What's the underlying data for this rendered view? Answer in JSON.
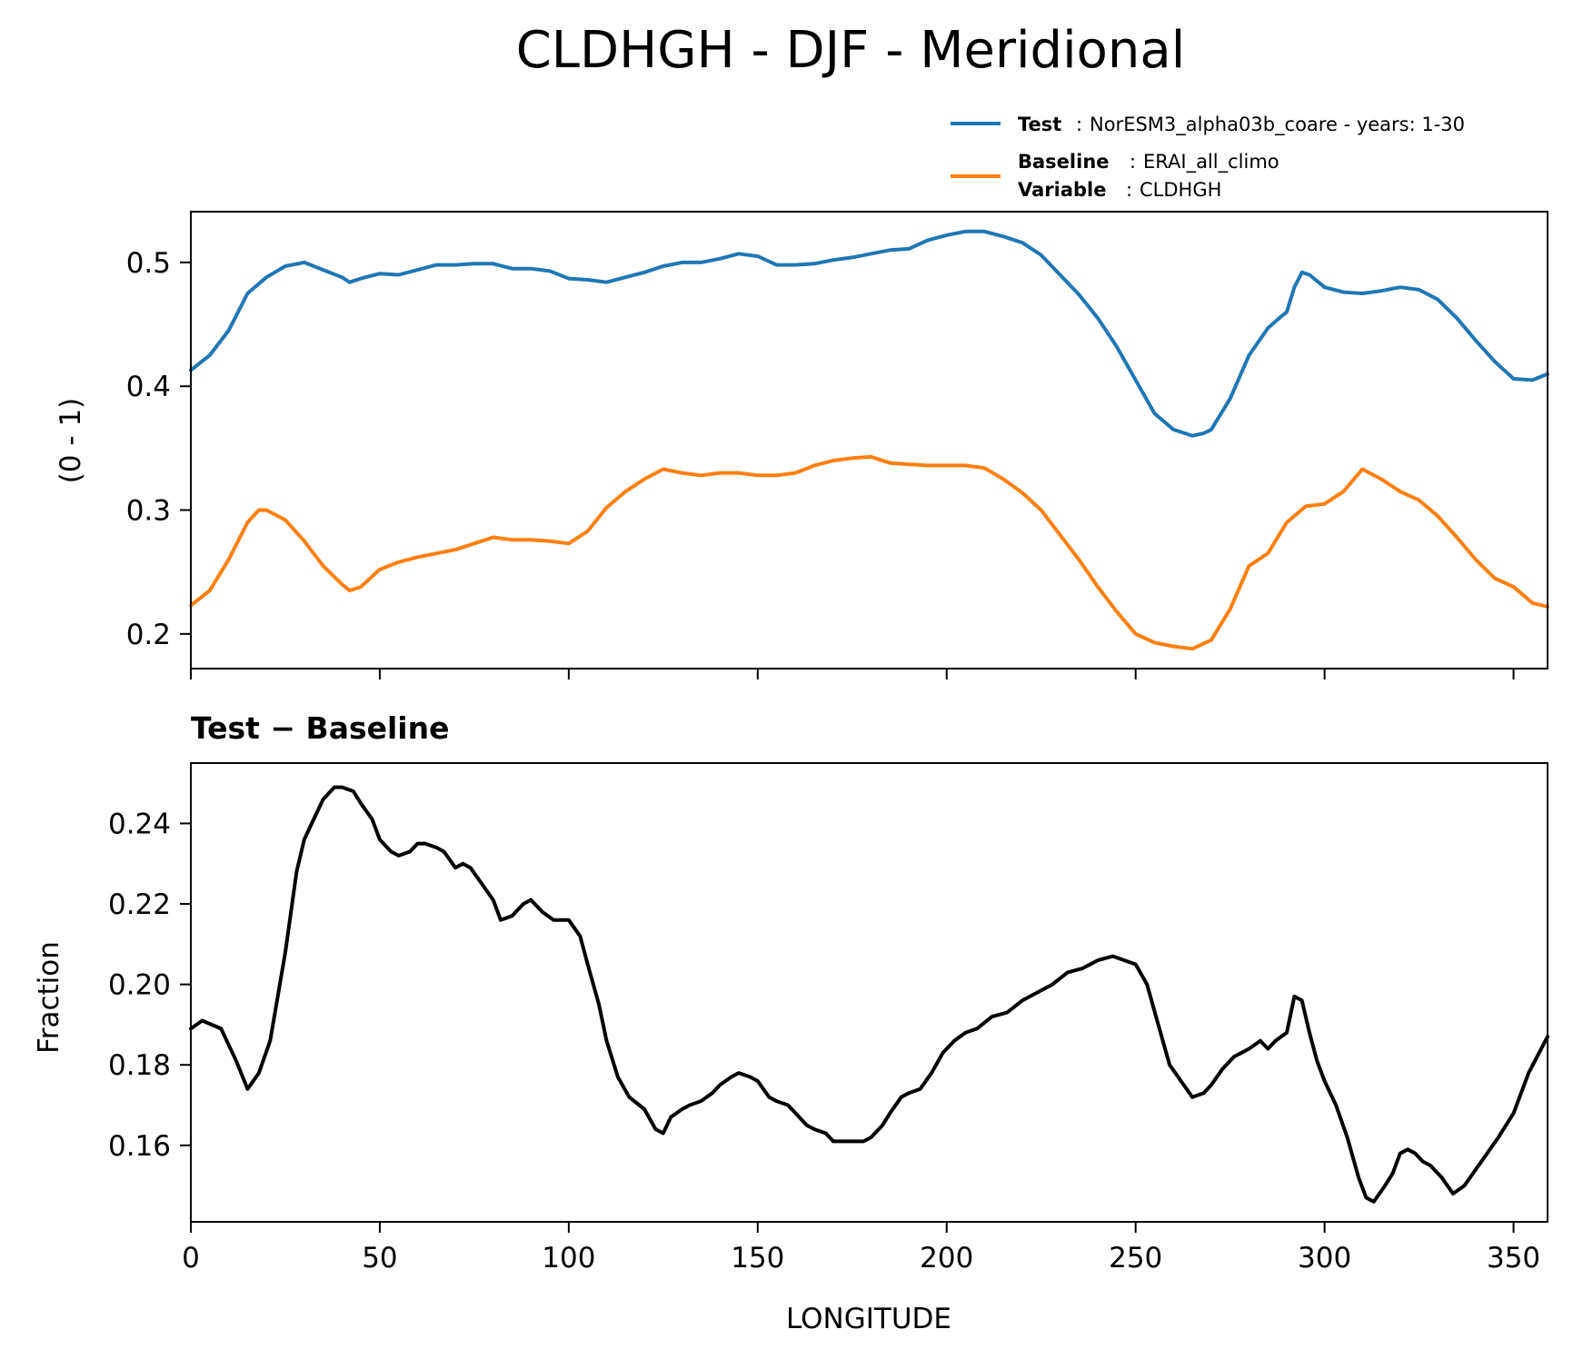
{
  "figure_title": "CLDHGH - DJF - Meridional",
  "legend": {
    "test_key": "Test",
    "test_value": "NorESM3_alpha03b_coare - years: 1-30",
    "baseline_key": "Baseline",
    "baseline_value": "ERAI_all_climo",
    "variable_key": "Variable",
    "variable_value": "CLDHGH",
    "separator": ":"
  },
  "colors": {
    "test": "#1f77b4",
    "baseline": "#ff7f0e",
    "diff": "#000000"
  },
  "chart_data": [
    {
      "type": "line",
      "title": "",
      "xlabel": "",
      "ylabel": "(0 - 1)",
      "xlim": [
        0,
        359
      ],
      "ylim": [
        0.172,
        0.541
      ],
      "xticks": [
        0,
        50,
        100,
        150,
        200,
        250,
        300,
        350
      ],
      "show_x_ticklabels": false,
      "yticks": [
        0.2,
        0.3,
        0.4,
        0.5
      ],
      "ytick_labels": [
        "0.2",
        "0.3",
        "0.4",
        "0.5"
      ],
      "series": [
        {
          "name": "Test",
          "color": "#1f77b4",
          "x": [
            0,
            5,
            10,
            15,
            20,
            25,
            30,
            35,
            40,
            42,
            45,
            50,
            55,
            60,
            65,
            70,
            75,
            80,
            85,
            90,
            95,
            100,
            105,
            110,
            115,
            120,
            125,
            130,
            135,
            140,
            145,
            150,
            155,
            160,
            165,
            170,
            175,
            180,
            185,
            190,
            195,
            200,
            205,
            210,
            215,
            220,
            225,
            230,
            235,
            240,
            245,
            250,
            255,
            260,
            265,
            268,
            270,
            275,
            280,
            285,
            288,
            290,
            292,
            294,
            296,
            300,
            305,
            310,
            315,
            320,
            325,
            330,
            335,
            340,
            345,
            350,
            355,
            359
          ],
          "y": [
            0.413,
            0.425,
            0.445,
            0.475,
            0.488,
            0.497,
            0.5,
            0.494,
            0.488,
            0.484,
            0.487,
            0.491,
            0.49,
            0.494,
            0.498,
            0.498,
            0.499,
            0.499,
            0.495,
            0.495,
            0.493,
            0.487,
            0.486,
            0.484,
            0.488,
            0.492,
            0.497,
            0.5,
            0.5,
            0.503,
            0.507,
            0.505,
            0.498,
            0.498,
            0.499,
            0.502,
            0.504,
            0.507,
            0.51,
            0.511,
            0.518,
            0.522,
            0.525,
            0.525,
            0.521,
            0.516,
            0.506,
            0.49,
            0.474,
            0.455,
            0.432,
            0.405,
            0.378,
            0.365,
            0.36,
            0.362,
            0.365,
            0.39,
            0.425,
            0.447,
            0.455,
            0.46,
            0.48,
            0.492,
            0.49,
            0.48,
            0.476,
            0.475,
            0.477,
            0.48,
            0.478,
            0.47,
            0.455,
            0.437,
            0.42,
            0.406,
            0.405,
            0.41
          ]
        },
        {
          "name": "Baseline",
          "color": "#ff7f0e",
          "x": [
            0,
            5,
            10,
            15,
            18,
            20,
            25,
            30,
            35,
            40,
            42,
            45,
            50,
            55,
            60,
            65,
            70,
            75,
            80,
            85,
            90,
            95,
            100,
            105,
            110,
            115,
            120,
            125,
            130,
            135,
            140,
            145,
            150,
            155,
            160,
            165,
            170,
            175,
            180,
            185,
            190,
            195,
            200,
            205,
            210,
            215,
            220,
            225,
            230,
            235,
            240,
            245,
            250,
            255,
            260,
            265,
            270,
            275,
            280,
            285,
            290,
            295,
            300,
            305,
            310,
            315,
            320,
            325,
            330,
            335,
            340,
            345,
            350,
            355,
            359
          ],
          "y": [
            0.223,
            0.235,
            0.26,
            0.29,
            0.3,
            0.3,
            0.292,
            0.275,
            0.255,
            0.24,
            0.235,
            0.238,
            0.252,
            0.258,
            0.262,
            0.265,
            0.268,
            0.273,
            0.278,
            0.276,
            0.276,
            0.275,
            0.273,
            0.283,
            0.302,
            0.315,
            0.325,
            0.333,
            0.33,
            0.328,
            0.33,
            0.33,
            0.328,
            0.328,
            0.33,
            0.336,
            0.34,
            0.342,
            0.343,
            0.338,
            0.337,
            0.336,
            0.336,
            0.336,
            0.334,
            0.325,
            0.314,
            0.3,
            0.28,
            0.26,
            0.238,
            0.218,
            0.2,
            0.193,
            0.19,
            0.188,
            0.195,
            0.22,
            0.255,
            0.265,
            0.29,
            0.303,
            0.305,
            0.315,
            0.333,
            0.325,
            0.315,
            0.308,
            0.295,
            0.278,
            0.26,
            0.245,
            0.238,
            0.225,
            0.222
          ]
        }
      ]
    },
    {
      "type": "line",
      "title": "Test − Baseline",
      "xlabel": "LONGITUDE",
      "ylabel": "Fraction",
      "xlim": [
        0,
        359
      ],
      "ylim": [
        0.141,
        0.255
      ],
      "xticks": [
        0,
        50,
        100,
        150,
        200,
        250,
        300,
        350
      ],
      "xtick_labels": [
        "0",
        "50",
        "100",
        "150",
        "200",
        "250",
        "300",
        "350"
      ],
      "yticks": [
        0.16,
        0.18,
        0.2,
        0.22,
        0.24
      ],
      "ytick_labels": [
        "0.16",
        "0.18",
        "0.20",
        "0.22",
        "0.24"
      ],
      "series": [
        {
          "name": "Test − Baseline",
          "color": "#000000",
          "x": [
            0,
            3,
            8,
            12,
            15,
            18,
            21,
            25,
            28,
            30,
            32,
            35,
            38,
            40,
            43,
            45,
            48,
            50,
            53,
            55,
            58,
            60,
            62,
            65,
            67,
            70,
            72,
            74,
            77,
            80,
            82,
            85,
            88,
            90,
            93,
            96,
            98,
            100,
            103,
            105,
            108,
            110,
            113,
            116,
            120,
            123,
            125,
            127,
            130,
            132,
            135,
            138,
            140,
            143,
            145,
            148,
            150,
            153,
            155,
            158,
            160,
            163,
            165,
            168,
            170,
            173,
            176,
            178,
            180,
            183,
            185,
            188,
            190,
            193,
            196,
            199,
            202,
            205,
            208,
            212,
            216,
            220,
            224,
            228,
            232,
            236,
            240,
            244,
            247,
            250,
            253,
            256,
            259,
            262,
            265,
            268,
            270,
            273,
            276,
            280,
            283,
            285,
            287,
            290,
            292,
            294,
            296,
            298,
            300,
            303,
            306,
            309,
            311,
            313,
            316,
            318,
            320,
            322,
            324,
            326,
            328,
            331,
            334,
            337,
            340,
            343,
            346,
            350,
            354,
            359
          ],
          "y": [
            0.189,
            0.191,
            0.189,
            0.181,
            0.174,
            0.178,
            0.186,
            0.208,
            0.228,
            0.236,
            0.24,
            0.246,
            0.249,
            0.249,
            0.248,
            0.245,
            0.241,
            0.236,
            0.233,
            0.232,
            0.233,
            0.235,
            0.235,
            0.234,
            0.233,
            0.229,
            0.23,
            0.229,
            0.225,
            0.221,
            0.216,
            0.217,
            0.22,
            0.221,
            0.218,
            0.216,
            0.216,
            0.216,
            0.212,
            0.205,
            0.195,
            0.186,
            0.177,
            0.172,
            0.169,
            0.164,
            0.163,
            0.167,
            0.169,
            0.17,
            0.171,
            0.173,
            0.175,
            0.177,
            0.178,
            0.177,
            0.176,
            0.172,
            0.171,
            0.17,
            0.168,
            0.165,
            0.164,
            0.163,
            0.161,
            0.161,
            0.161,
            0.161,
            0.162,
            0.165,
            0.168,
            0.172,
            0.173,
            0.174,
            0.178,
            0.183,
            0.186,
            0.188,
            0.189,
            0.192,
            0.193,
            0.196,
            0.198,
            0.2,
            0.203,
            0.204,
            0.206,
            0.207,
            0.206,
            0.205,
            0.2,
            0.19,
            0.18,
            0.176,
            0.172,
            0.173,
            0.175,
            0.179,
            0.182,
            0.184,
            0.186,
            0.184,
            0.186,
            0.188,
            0.197,
            0.196,
            0.188,
            0.181,
            0.176,
            0.17,
            0.162,
            0.152,
            0.147,
            0.146,
            0.15,
            0.153,
            0.158,
            0.159,
            0.158,
            0.156,
            0.155,
            0.152,
            0.148,
            0.15,
            0.154,
            0.158,
            0.162,
            0.168,
            0.178,
            0.187
          ]
        }
      ]
    }
  ]
}
